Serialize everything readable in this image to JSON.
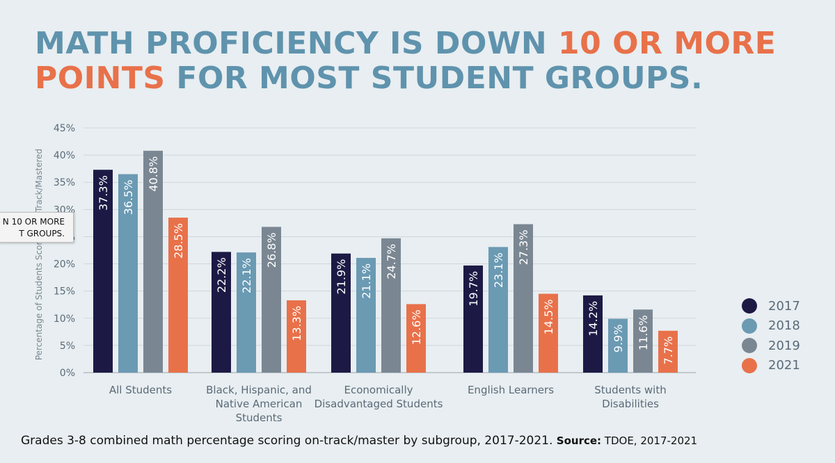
{
  "headline": {
    "part1": "MATH PROFICIENCY IS DOWN ",
    "part2": "10 OR MORE",
    "part3": "POINTS",
    "part4": " FOR MOST STUDENT GROUPS."
  },
  "tooltip": {
    "line1": "N 10 OR MORE",
    "line2": "T GROUPS."
  },
  "caption": {
    "text": "Grades 3-8 combined math percentage scoring on-track/master by subgroup, 2017-2021. ",
    "source_label": "Source:",
    "source_text": " TDOE, 2017-2021"
  },
  "colors": {
    "2017": "#1c1a45",
    "2018": "#6b9ab3",
    "2019": "#7a8793",
    "2021": "#e8714a",
    "headline_blue": "#5f93ad",
    "headline_orange": "#e8714a"
  },
  "chart_data": {
    "type": "bar",
    "title": "",
    "xlabel": "",
    "ylabel": "Percentage of Students Scoring On-Track/Mastered",
    "ylim": [
      0,
      45
    ],
    "yticks": [
      "0%",
      "5%",
      "10%",
      "15%",
      "20%",
      "25%",
      "30%",
      "35%",
      "40%",
      "45%"
    ],
    "grid": true,
    "legend_position": "right",
    "categories": [
      "All Students",
      "Black, Hispanic, and Native American Students",
      "Economically Disadvantaged Students",
      "English Learners",
      "Students with Disabilities"
    ],
    "series": [
      {
        "name": "2017",
        "color": "#1c1a45",
        "values": [
          37.3,
          22.2,
          21.9,
          19.7,
          14.2
        ],
        "labels": [
          "37.3%",
          "22.2%",
          "21.9%",
          "19.7%",
          "14.2%"
        ]
      },
      {
        "name": "2018",
        "color": "#6b9ab3",
        "values": [
          36.5,
          22.1,
          21.1,
          23.1,
          9.9
        ],
        "labels": [
          "36.5%",
          "22.1%",
          "21.1%",
          "23.1%",
          "9.9%"
        ]
      },
      {
        "name": "2019",
        "color": "#7a8793",
        "values": [
          40.8,
          26.8,
          24.7,
          27.3,
          11.6
        ],
        "labels": [
          "40.8%",
          "26.8%",
          "24.7%",
          "27.3%",
          "11.6%"
        ]
      },
      {
        "name": "2021",
        "color": "#e8714a",
        "values": [
          28.5,
          13.3,
          12.6,
          14.5,
          7.7
        ],
        "labels": [
          "28.5%",
          "13.3%",
          "12.6%",
          "14.5%",
          "7.7%"
        ]
      }
    ]
  }
}
